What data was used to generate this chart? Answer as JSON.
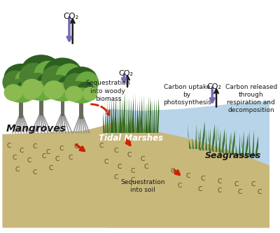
{
  "bg_color": "#ffffff",
  "water_color": "#b8d4e8",
  "soil_color": "#c8b87a",
  "purple_color": "#7b68b5",
  "red_color": "#cc2200",
  "black_color": "#1a1a1a",
  "dark_green": "#2d6020",
  "medium_green": "#4a8030",
  "light_green": "#6aaa40",
  "pale_green": "#8aba50",
  "root_gray": "#888888",
  "co2": "CO₂",
  "text_mangroves": "Mangroves",
  "text_tidal": "Tidal Marshes",
  "text_seagrasses": "Seagrasses",
  "text_seq_woody": "Sequestration\ninto woody\nbiomass",
  "text_seq_soil": "Sequestration\ninto soil",
  "text_carbon_uptake": "Carbon uptake\nby\nphotosynthesis",
  "text_carbon_released": "Carbon released\nthrough\nrespiration and\ndecomposition",
  "c_color": "#5a4a25"
}
